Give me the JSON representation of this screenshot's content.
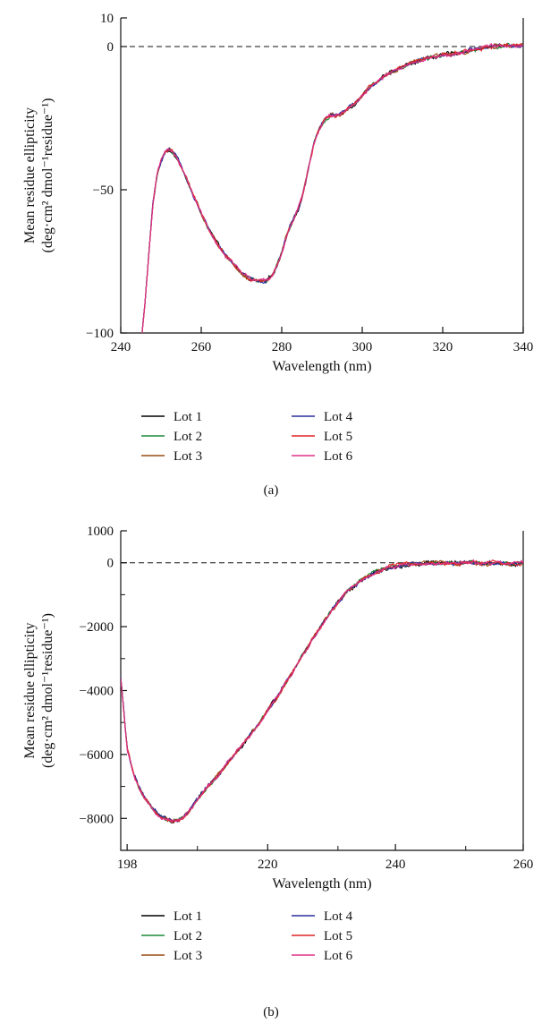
{
  "chart_data": [
    {
      "type": "line",
      "panel_label": "(a)",
      "xlabel": "Wavelength (nm)",
      "ylabel_line1": "Mean residue ellipticity",
      "ylabel_line2": "(deg·cm² dmol⁻¹residue⁻¹)",
      "xlim": [
        240,
        340
      ],
      "ylim": [
        -100,
        10
      ],
      "xticks": [
        240,
        260,
        280,
        300,
        320,
        340
      ],
      "xtick_labels": [
        "240",
        "260",
        "280",
        "300",
        "320",
        "340"
      ],
      "yticks": [
        10,
        0,
        -50,
        -100
      ],
      "ytick_labels": [
        "10",
        "0",
        "−50",
        "−100"
      ],
      "zero_line": true,
      "grid": false,
      "legend_position": "below",
      "curve": {
        "x": [
          245.3,
          246,
          247,
          248,
          249,
          250,
          251,
          252,
          253,
          254,
          255,
          256,
          258,
          260,
          262,
          264,
          266,
          268,
          270,
          272,
          274,
          275,
          276,
          277,
          278,
          279,
          280,
          281,
          282,
          283,
          284,
          285,
          286,
          287,
          288,
          289,
          290,
          291,
          292,
          293,
          294,
          295,
          296,
          298,
          300,
          302,
          304,
          306,
          308,
          310,
          312,
          314,
          316,
          318,
          320,
          322,
          324,
          326,
          328,
          330,
          332,
          334,
          336,
          338,
          340
        ],
        "y": [
          -100,
          -90,
          -72,
          -55,
          -45,
          -40,
          -37,
          -36,
          -37,
          -39,
          -42,
          -45,
          -52,
          -58,
          -64,
          -69,
          -73,
          -76,
          -79,
          -81,
          -82,
          -82,
          -82,
          -81,
          -79,
          -76,
          -72,
          -67,
          -63,
          -60,
          -57,
          -53,
          -47,
          -40,
          -34,
          -30,
          -27,
          -25,
          -24,
          -24,
          -24,
          -23,
          -22,
          -20,
          -17,
          -14,
          -12,
          -10,
          -8.5,
          -7,
          -6,
          -5,
          -4,
          -3.5,
          -3,
          -2.5,
          -2,
          -1.5,
          -1,
          -0.5,
          0,
          0.2,
          0.3,
          0.4,
          0.4
        ]
      },
      "series": [
        {
          "name": "Lot 1",
          "color": "#000000"
        },
        {
          "name": "Lot 2",
          "color": "#1f8a3a"
        },
        {
          "name": "Lot 3",
          "color": "#9a4a14"
        },
        {
          "name": "Lot 4",
          "color": "#2c2f9e"
        },
        {
          "name": "Lot 5",
          "color": "#e02424"
        },
        {
          "name": "Lot 6",
          "color": "#e0308a"
        }
      ]
    },
    {
      "type": "line",
      "panel_label": "(b)",
      "xlabel": "Wavelength (nm)",
      "ylabel_line1": "Mean residue ellipticity",
      "ylabel_line2": "(deg·cm² dmol⁻¹residue⁻¹)",
      "xlim": [
        197,
        260
      ],
      "ylim": [
        -9000,
        1000
      ],
      "xticks": [
        198,
        220,
        240,
        260
      ],
      "xtick_labels": [
        "198",
        "220",
        "240",
        "260"
      ],
      "minor_xticks": [
        209,
        231,
        251
      ],
      "yticks": [
        1000,
        0,
        -2000,
        -4000,
        -6000,
        -8000
      ],
      "ytick_labels": [
        "1000",
        "0",
        "−2000",
        "−4000",
        "−6000",
        "−8000"
      ],
      "minor_yticks": [
        -1000,
        -3000,
        -5000,
        -7000
      ],
      "zero_line": true,
      "grid": false,
      "legend_position": "below",
      "curve": {
        "x": [
          197,
          198,
          199,
          200,
          201,
          202,
          203,
          204,
          205,
          206,
          207,
          208,
          209,
          210,
          211,
          212,
          213,
          214,
          215,
          216,
          217,
          218,
          219,
          220,
          221,
          222,
          223,
          224,
          225,
          226,
          227,
          228,
          229,
          230,
          231,
          232,
          233,
          234,
          235,
          236,
          237,
          238,
          239,
          240,
          242,
          244,
          246,
          248,
          250,
          252,
          254,
          256,
          258,
          260
        ],
        "y": [
          -3600,
          -5800,
          -6600,
          -7100,
          -7400,
          -7700,
          -7900,
          -8000,
          -8100,
          -8050,
          -7900,
          -7700,
          -7400,
          -7150,
          -6900,
          -6700,
          -6450,
          -6200,
          -5950,
          -5700,
          -5450,
          -5200,
          -4950,
          -4650,
          -4350,
          -4050,
          -3700,
          -3400,
          -3050,
          -2750,
          -2400,
          -2100,
          -1800,
          -1500,
          -1250,
          -1000,
          -800,
          -650,
          -500,
          -380,
          -280,
          -200,
          -140,
          -100,
          -50,
          -20,
          -10,
          -10,
          -10,
          20,
          -30,
          0,
          -20,
          0
        ]
      },
      "series": [
        {
          "name": "Lot 1",
          "color": "#000000"
        },
        {
          "name": "Lot 2",
          "color": "#1f8a3a"
        },
        {
          "name": "Lot 3",
          "color": "#9a4a14"
        },
        {
          "name": "Lot 4",
          "color": "#2c2f9e"
        },
        {
          "name": "Lot 5",
          "color": "#e02424"
        },
        {
          "name": "Lot 6",
          "color": "#e0308a"
        }
      ]
    }
  ]
}
